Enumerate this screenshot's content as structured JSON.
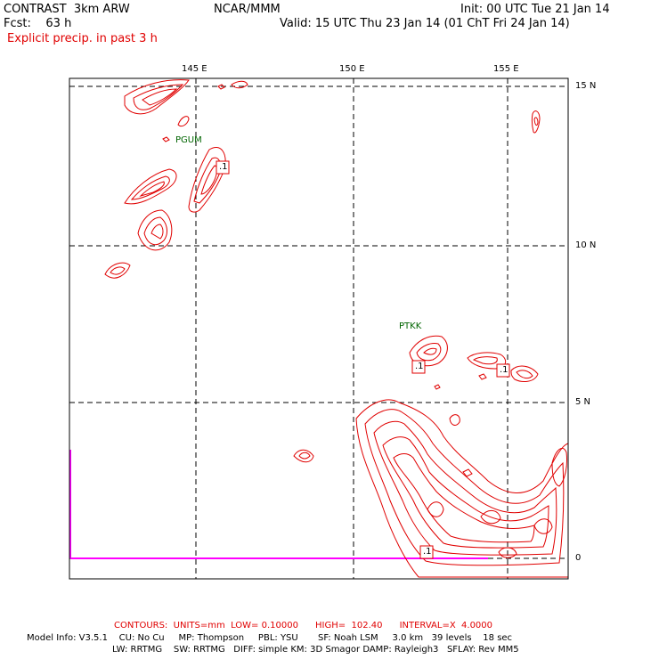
{
  "header": {
    "model_title": "CONTRAST  3km ARW",
    "center": "NCAR/MMM",
    "init": "Init: 00 UTC Tue 21 Jan 14",
    "fcst": "Fcst:    63 h",
    "valid": "Valid: 15 UTC Thu 23 Jan 14 (01 ChT Fri 24 Jan 14)",
    "field_title": "Explicit precip. in past 3 h"
  },
  "map": {
    "lon_labels": [
      "145 E",
      "150 E",
      "155 E"
    ],
    "lat_labels": [
      "15 N",
      "10 N",
      "5 N",
      "0"
    ],
    "stations": [
      "PGUM",
      "PTKK"
    ],
    "contour_value_labels": [
      ".1",
      ".1",
      ".1",
      ".1",
      ".1"
    ],
    "colors": {
      "contour": "#e00000",
      "grid": "#000000",
      "boundary": "#ff00ff",
      "station": "#006400"
    }
  },
  "footer": {
    "contours": "CONTOURS:  UNITS=mm  LOW= 0.10000      HIGH=  102.40      INTERVAL=X  4.0000",
    "model_info_1": "Model Info: V3.5.1    CU: No Cu     MP: Thompson     PBL: YSU       SF: Noah LSM     3.0 km   39 levels    18 sec",
    "model_info_2": "LW: RRTMG    SW: RRTMG   DIFF: simple KM: 3D Smagor DAMP: Rayleigh3   SFLAY: Rev MM5"
  }
}
